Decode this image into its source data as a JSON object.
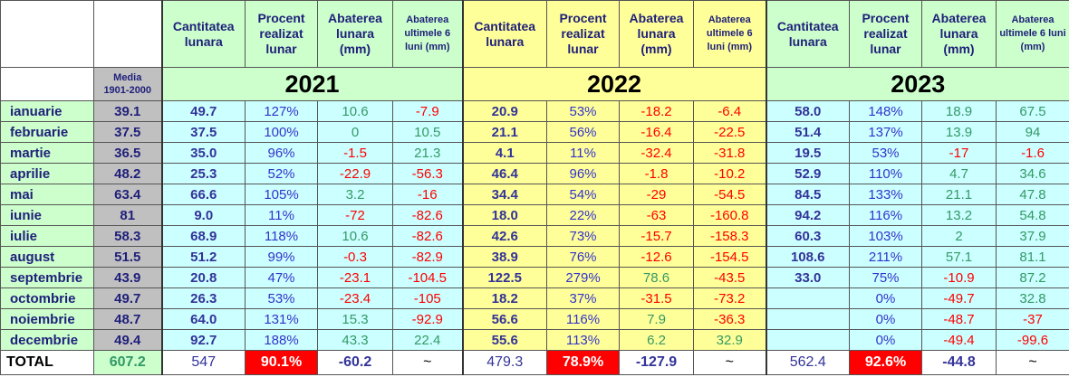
{
  "media_label": [
    "Media",
    "1901-2000"
  ],
  "total_label": "TOTAL",
  "total_media": "607.2",
  "months": [
    "ianuarie",
    "februarie",
    "martie",
    "aprilie",
    "mai",
    "iunie",
    "iulie",
    "august",
    "septembrie",
    "octombrie",
    "noiembrie",
    "decembrie"
  ],
  "media": [
    "39.1",
    "37.5",
    "36.5",
    "48.2",
    "63.4",
    "81",
    "58.3",
    "51.5",
    "43.9",
    "49.7",
    "48.7",
    "49.4"
  ],
  "years": [
    {
      "year": "2021",
      "headers": [
        "Cantitatea lunara",
        "Procent realizat lunar",
        "Abaterea lunara (mm)",
        "Abaterea ultimele 6 luni (mm)"
      ],
      "rows": [
        [
          "49.7",
          "127%",
          "10.6",
          "-7.9"
        ],
        [
          "37.5",
          "100%",
          "0",
          "10.5"
        ],
        [
          "35.0",
          "96%",
          "-1.5",
          "21.3"
        ],
        [
          "25.3",
          "52%",
          "-22.9",
          "-56.3"
        ],
        [
          "66.6",
          "105%",
          "3.2",
          "-16"
        ],
        [
          "9.0",
          "11%",
          "-72",
          "-82.6"
        ],
        [
          "68.9",
          "118%",
          "10.6",
          "-82.6"
        ],
        [
          "51.2",
          "99%",
          "-0.3",
          "-82.9"
        ],
        [
          "20.8",
          "47%",
          "-23.1",
          "-104.5"
        ],
        [
          "26.3",
          "53%",
          "-23.4",
          "-105"
        ],
        [
          "64.0",
          "131%",
          "15.3",
          "-92.9"
        ],
        [
          "92.7",
          "188%",
          "43.3",
          "22.4"
        ]
      ],
      "total": [
        "547",
        "90.1%",
        "-60.2",
        "~"
      ]
    },
    {
      "year": "2022",
      "headers": [
        "Cantitatea lunara",
        "Procent realizat lunar",
        "Abaterea lunara (mm)",
        "Abaterea ultimele 6 luni (mm)"
      ],
      "rows": [
        [
          "20.9",
          "53%",
          "-18.2",
          "-6.4"
        ],
        [
          "21.1",
          "56%",
          "-16.4",
          "-22.5"
        ],
        [
          "4.1",
          "11%",
          "-32.4",
          "-31.8"
        ],
        [
          "46.4",
          "96%",
          "-1.8",
          "-10.2"
        ],
        [
          "34.4",
          "54%",
          "-29",
          "-54.5"
        ],
        [
          "18.0",
          "22%",
          "-63",
          "-160.8"
        ],
        [
          "42.6",
          "73%",
          "-15.7",
          "-158.3"
        ],
        [
          "38.9",
          "76%",
          "-12.6",
          "-154.5"
        ],
        [
          "122.5",
          "279%",
          "78.6",
          "-43.5"
        ],
        [
          "18.2",
          "37%",
          "-31.5",
          "-73.2"
        ],
        [
          "56.6",
          "116%",
          "7.9",
          "-36.3"
        ],
        [
          "55.6",
          "113%",
          "6.2",
          "32.9"
        ]
      ],
      "total": [
        "479.3",
        "78.9%",
        "-127.9",
        "~"
      ]
    },
    {
      "year": "2023",
      "headers": [
        "Cantitatea lunara",
        "Procent realizat lunar",
        "Abaterea lunara (mm)",
        "Abaterea ultimele 6 luni (mm)"
      ],
      "rows": [
        [
          "58.0",
          "148%",
          "18.9",
          "67.5"
        ],
        [
          "51.4",
          "137%",
          "13.9",
          "94"
        ],
        [
          "19.5",
          "53%",
          "-17",
          "-1.6"
        ],
        [
          "52.9",
          "110%",
          "4.7",
          "34.6"
        ],
        [
          "84.5",
          "133%",
          "21.1",
          "47.8"
        ],
        [
          "94.2",
          "116%",
          "13.2",
          "54.8"
        ],
        [
          "60.3",
          "103%",
          "2",
          "37.9"
        ],
        [
          "108.6",
          "211%",
          "57.1",
          "81.1"
        ],
        [
          "33.0",
          "75%",
          "-10.9",
          "87.2"
        ],
        [
          null,
          "0%",
          "-49.7",
          "32.8"
        ],
        [
          null,
          "0%",
          "-48.7",
          "-37"
        ],
        [
          null,
          "0%",
          "-49.4",
          "-99.6"
        ]
      ],
      "total": [
        "562.4",
        "92.6%",
        "-44.8",
        "~"
      ]
    }
  ]
}
